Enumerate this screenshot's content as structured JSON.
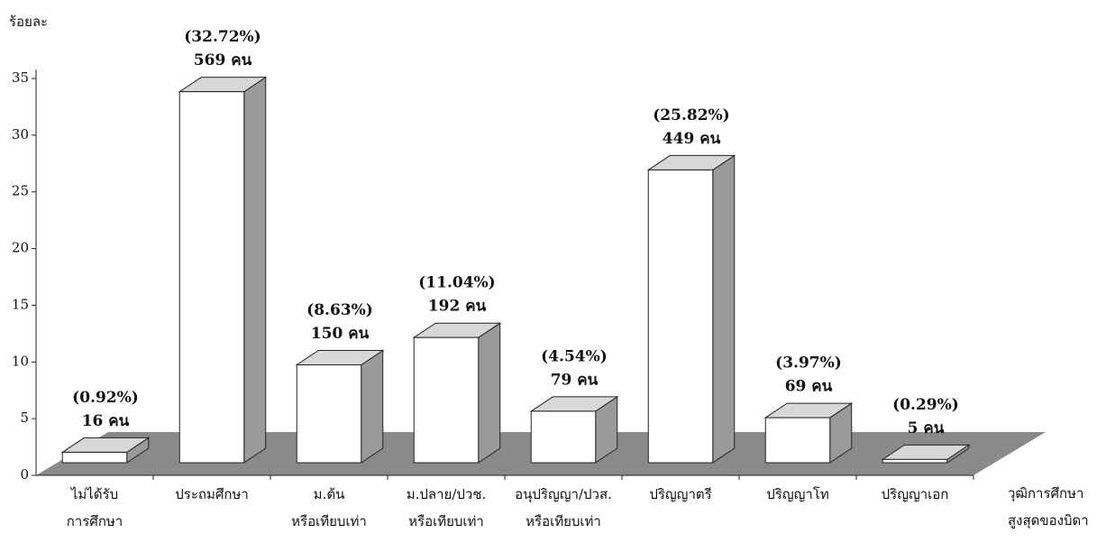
{
  "chart_data": {
    "type": "bar3d",
    "y_label": "ร้อยละ",
    "x_label": [
      "วุฒิการศึกษา",
      "สูงสุดของบิดา"
    ],
    "categories": [
      [
        "ไม่ได้รับ",
        "การศึกษา"
      ],
      [
        "ประถมศึกษา"
      ],
      [
        "ม.ต้น",
        "หรือเทียบเท่า"
      ],
      [
        "ม.ปลาย/ปวช.",
        "หรือเทียบเท่า"
      ],
      [
        "อนุปริญญา/ปวส.",
        "หรือเทียบเท่า"
      ],
      [
        "ปริญญาตรี"
      ],
      [
        "ปริญญาโท"
      ],
      [
        "ปริญญาเอก"
      ]
    ],
    "values": [
      0.92,
      32.72,
      8.63,
      11.04,
      4.54,
      25.82,
      3.97,
      0.29
    ],
    "value_labels": [
      "(0.92%)",
      "(32.72%)",
      "(8.63%)",
      "(11.04%)",
      "(4.54%)",
      "(25.82%)",
      "(3.97%)",
      "(0.29%)"
    ],
    "count_labels": [
      "16 คน",
      "569 คน",
      "150 คน",
      "192 คน",
      "79 คน",
      "449 คน",
      "69 คน",
      "5 คน"
    ],
    "color": "#ffffff",
    "ylim": [
      0,
      35
    ],
    "yticks": [
      0,
      5,
      10,
      15,
      20,
      25,
      30,
      35
    ]
  }
}
